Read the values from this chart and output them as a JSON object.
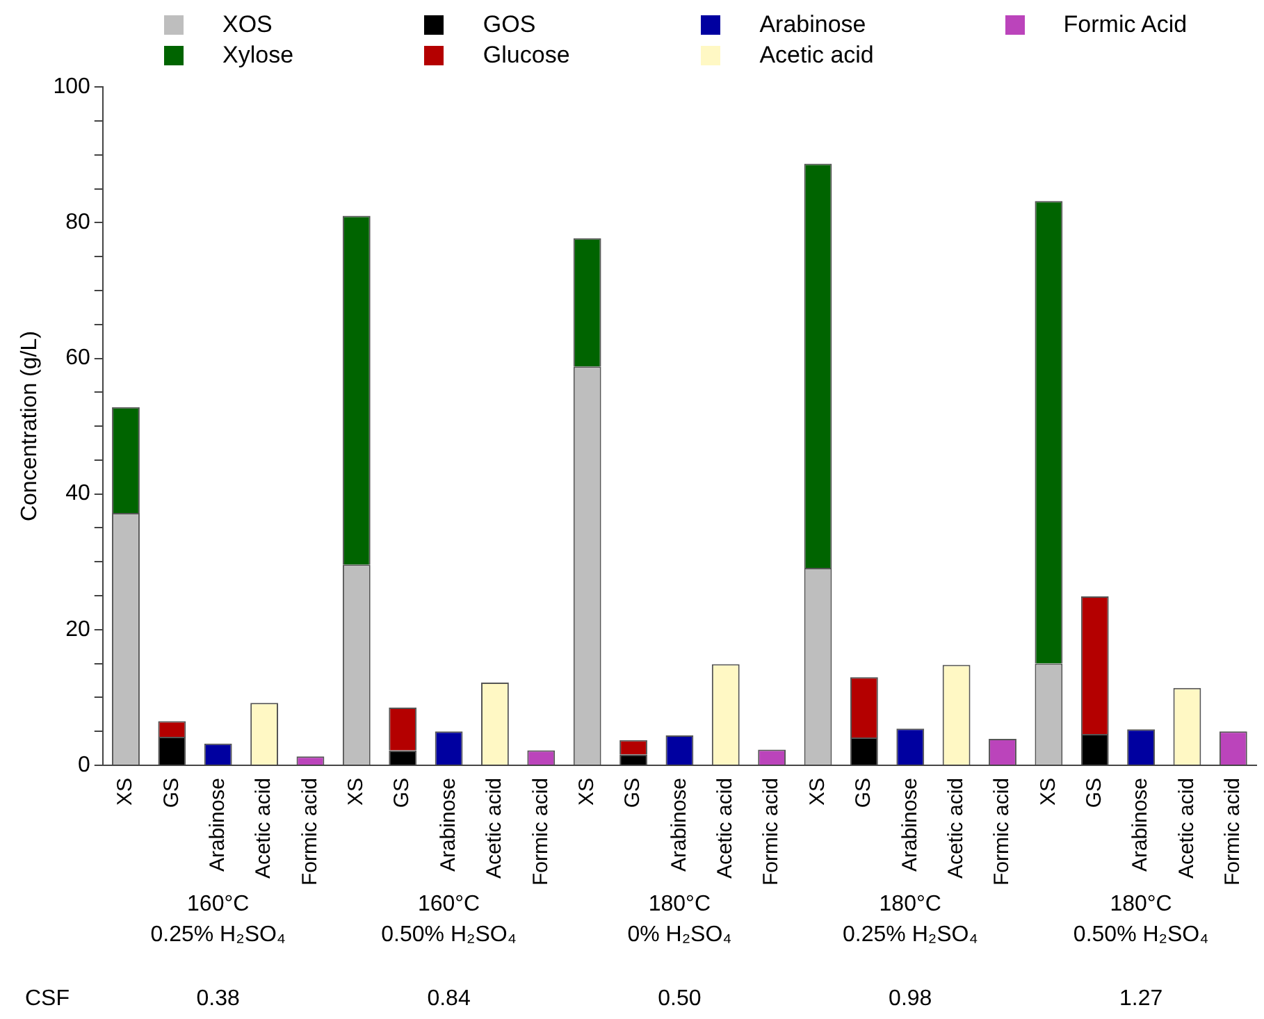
{
  "chart_data": {
    "type": "bar",
    "stacked": true,
    "ylabel": "Concentration (g/L)",
    "categories": [
      "XS",
      "GS",
      "Arabinose",
      "Acetic acid",
      "Formic acid",
      "XS",
      "GS",
      "Arabinose",
      "Acetic acid",
      "Formic acid",
      "XS",
      "GS",
      "Arabinose",
      "Acetic acid",
      "Formic acid",
      "XS",
      "GS",
      "Arabinose",
      "Acetic acid",
      "Formic acid",
      "XS",
      "GS",
      "Arabinose",
      "Acetic acid",
      "Formic acid"
    ],
    "series": [
      {
        "name": "XOS",
        "color": "#bebebe",
        "values": [
          37.2,
          null,
          null,
          null,
          null,
          29.6,
          null,
          null,
          null,
          null,
          58.8,
          null,
          null,
          null,
          null,
          29.1,
          null,
          null,
          null,
          null,
          15.0,
          null,
          null,
          null,
          null
        ]
      },
      {
        "name": "Xylose",
        "color": "#006400",
        "values": [
          15.6,
          null,
          null,
          null,
          null,
          51.4,
          null,
          null,
          null,
          null,
          18.9,
          null,
          null,
          null,
          null,
          59.6,
          null,
          null,
          null,
          null,
          68.2,
          null,
          null,
          null,
          null
        ]
      },
      {
        "name": "GOS",
        "color": "#000000",
        "values": [
          null,
          4.2,
          null,
          null,
          null,
          null,
          2.2,
          null,
          null,
          null,
          null,
          1.6,
          null,
          null,
          null,
          null,
          4.1,
          null,
          null,
          null,
          null,
          4.6,
          null,
          null,
          null
        ]
      },
      {
        "name": "Glucose",
        "color": "#b40000",
        "values": [
          null,
          2.3,
          null,
          null,
          null,
          null,
          6.3,
          null,
          null,
          null,
          null,
          2.1,
          null,
          null,
          null,
          null,
          8.9,
          null,
          null,
          null,
          null,
          20.3,
          null,
          null,
          null
        ]
      },
      {
        "name": "Arabinose",
        "color": "#0000a0",
        "values": [
          null,
          null,
          3.2,
          null,
          null,
          null,
          null,
          5.0,
          null,
          null,
          null,
          null,
          4.4,
          null,
          null,
          null,
          null,
          5.4,
          null,
          null,
          null,
          null,
          5.3,
          null,
          null
        ]
      },
      {
        "name": "Acetic acid",
        "color": "#fff8c4",
        "values": [
          null,
          null,
          null,
          9.2,
          null,
          null,
          null,
          null,
          12.2,
          null,
          null,
          null,
          null,
          14.9,
          null,
          null,
          null,
          null,
          14.8,
          null,
          null,
          null,
          null,
          11.4,
          null
        ]
      },
      {
        "name": "Formic Acid",
        "color": "#bb44bb",
        "values": [
          null,
          null,
          null,
          null,
          1.3,
          null,
          null,
          null,
          null,
          2.2,
          null,
          null,
          null,
          null,
          2.3,
          null,
          null,
          null,
          null,
          3.9,
          null,
          null,
          null,
          null,
          5.0
        ]
      }
    ],
    "ylim": [
      0,
      100
    ],
    "yticks": [
      0,
      {
        "value": 5,
        "label": null
      },
      {
        "value": 10,
        "label": null
      },
      {
        "value": 15,
        "label": null
      },
      20,
      {
        "value": 25,
        "label": null
      },
      {
        "value": 30,
        "label": null
      },
      {
        "value": 35,
        "label": null
      },
      40,
      {
        "value": 45,
        "label": null
      },
      {
        "value": 50,
        "label": null
      },
      {
        "value": 55,
        "label": null
      },
      60,
      {
        "value": 65,
        "label": null
      },
      {
        "value": 70,
        "label": null
      },
      {
        "value": 75,
        "label": null
      },
      80,
      {
        "value": 85,
        "label": null
      },
      {
        "value": 90,
        "label": null
      },
      {
        "value": 95,
        "label": null
      },
      100
    ],
    "grid": false,
    "legend": "top",
    "annotations": [
      "160°C\n0.25% H₂SO₄",
      "160°C\n0.50% H₂SO₄",
      "180°C\n0% H₂SO₄",
      "180°C\n0.25% H₂SO₄",
      "180°C\n0.50% H₂SO₄",
      "CSF",
      "0.38",
      "0.84",
      "0.50",
      "0.98",
      "1.27"
    ]
  }
}
